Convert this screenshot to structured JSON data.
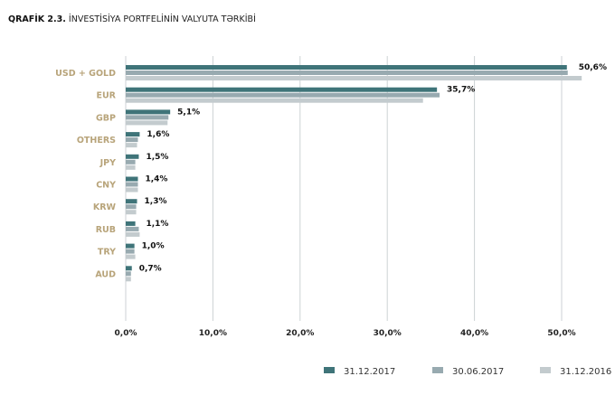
{
  "title": {
    "prefix": "QRAFİK 2.3.",
    "text": "İNVESTİSİYA PORTFELİNİN VALYUTA TƏRKİBİ"
  },
  "chart_data": {
    "type": "bar",
    "orientation": "horizontal",
    "categories": [
      "USD + GOLD",
      "EUR",
      "GBP",
      "OTHERS",
      "JPY",
      "CNY",
      "KRW",
      "RUB",
      "TRY",
      "AUD"
    ],
    "series": [
      {
        "name": "31.12.2017",
        "color": "#3f7479",
        "values": [
          50.6,
          35.7,
          5.1,
          1.6,
          1.5,
          1.4,
          1.3,
          1.1,
          1.0,
          0.7
        ]
      },
      {
        "name": "30.06.2017",
        "color": "#98aab0",
        "values": [
          50.7,
          36.0,
          4.9,
          1.4,
          1.1,
          1.4,
          1.2,
          1.5,
          1.0,
          0.6
        ]
      },
      {
        "name": "31.12.2016",
        "color": "#c3cbce",
        "values": [
          52.3,
          34.1,
          4.8,
          1.3,
          1.1,
          1.4,
          1.2,
          1.6,
          1.1,
          0.6
        ]
      }
    ],
    "data_labels": [
      "50,6%",
      "35,7%",
      "5,1%",
      "1,6%",
      "1,5%",
      "1,4%",
      "1,3%",
      "1,1%",
      "1,0%",
      "0,7%"
    ],
    "x_ticks": [
      "0,0%",
      "10,0%",
      "20,0%",
      "30,0%",
      "40,0%",
      "50,0%"
    ],
    "xlim": [
      0,
      55
    ],
    "grid": "vertical",
    "legend_position": "bottom-right"
  }
}
